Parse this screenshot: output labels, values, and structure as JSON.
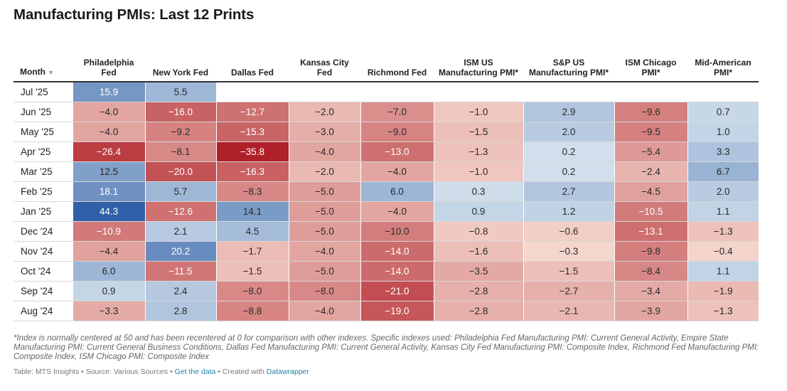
{
  "title": "Manufacturing PMIs: Last 12 Prints",
  "chart_data": {
    "type": "table",
    "title": "Manufacturing PMIs: Last 12 Prints",
    "month_header": "Month",
    "sort_indicator": "▼",
    "columns": [
      "Philadelphia Fed",
      "New York Fed",
      "Dallas Fed",
      "Kansas City Fed",
      "Richmond Fed",
      "ISM US Manufacturing PMI*",
      "S&P US Manufacturing PMI*",
      "ISM Chicago PMI*",
      "Mid-American PMI*"
    ],
    "rows": [
      {
        "month": "Jul '25",
        "values": [
          15.9,
          5.5,
          null,
          null,
          null,
          null,
          null,
          null,
          null
        ]
      },
      {
        "month": "Jun '25",
        "values": [
          -4.0,
          -16.0,
          -12.7,
          -2.0,
          -7.0,
          -1.0,
          2.9,
          -9.6,
          0.7
        ]
      },
      {
        "month": "May '25",
        "values": [
          -4.0,
          -9.2,
          -15.3,
          -3.0,
          -9.0,
          -1.5,
          2.0,
          -9.5,
          1.0
        ]
      },
      {
        "month": "Apr '25",
        "values": [
          -26.4,
          -8.1,
          -35.8,
          -4.0,
          -13.0,
          -1.3,
          0.2,
          -5.4,
          3.3
        ]
      },
      {
        "month": "Mar '25",
        "values": [
          12.5,
          -20.0,
          -16.3,
          -2.0,
          -4.0,
          -1.0,
          0.2,
          -2.4,
          6.7
        ]
      },
      {
        "month": "Feb '25",
        "values": [
          18.1,
          5.7,
          -8.3,
          -5.0,
          6.0,
          0.3,
          2.7,
          -4.5,
          2.0
        ]
      },
      {
        "month": "Jan '25",
        "values": [
          44.3,
          -12.6,
          14.1,
          -5.0,
          -4.0,
          0.9,
          1.2,
          -10.5,
          1.1
        ]
      },
      {
        "month": "Dec '24",
        "values": [
          -10.9,
          2.1,
          4.5,
          -5.0,
          -10.0,
          -0.8,
          -0.6,
          -13.1,
          -1.3
        ]
      },
      {
        "month": "Nov '24",
        "values": [
          -4.4,
          20.2,
          -1.7,
          -4.0,
          -14.0,
          -1.6,
          -0.3,
          -9.8,
          -0.4
        ]
      },
      {
        "month": "Oct '24",
        "values": [
          6.0,
          -11.5,
          -1.5,
          -5.0,
          -14.0,
          -3.5,
          -1.5,
          -8.4,
          1.1
        ]
      },
      {
        "month": "Sep '24",
        "values": [
          0.9,
          2.4,
          -8.0,
          -8.0,
          -21.0,
          -2.8,
          -2.7,
          -3.4,
          -1.9
        ]
      },
      {
        "month": "Aug '24",
        "values": [
          -3.3,
          2.8,
          -8.8,
          -4.0,
          -19.0,
          -2.8,
          -2.1,
          -3.9,
          -1.3
        ]
      }
    ],
    "color_scale": {
      "negative_max": "#b01f27",
      "negative_light": "#fbe8dd",
      "neutral": "#f1f1ef",
      "positive_light": "#dde8f1",
      "positive_max": "#2e5fa6"
    }
  },
  "footnote": "*Index is normally centered at 50 and has been recentered at 0 for comparison with other indexes. Specific indexes used: Philadelphia Fed Manufacturing PMI: Current General Activity, Empire State Manufacturing PMI: Current General Business Conditions, Dallas Fed Manufacturing PMI: Current General Activity, Kansas City Fed Manufacturing PMI: Composite Index, Richmond Fed Manufacturing PMI: Composite Index, ISM Chicago PMI: Composite Index",
  "credits": {
    "prefix": "Table: MTS Insights • Source: Various Sources • ",
    "get_data": "Get the data",
    "middle": " • Created with ",
    "tool": "Datawrapper"
  }
}
